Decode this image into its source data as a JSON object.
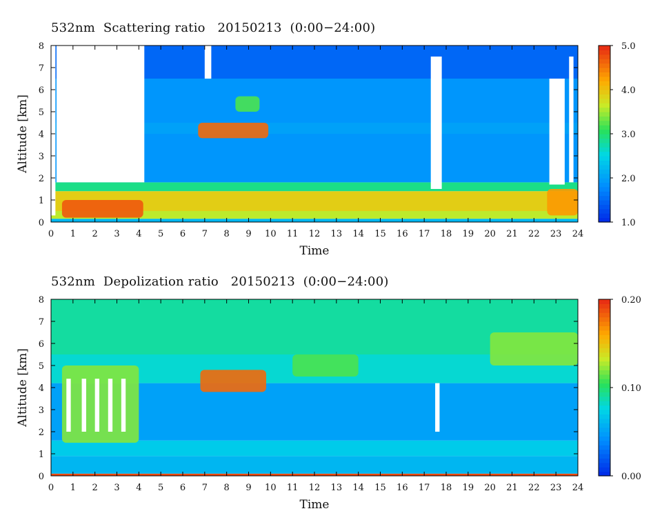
{
  "chart_data": [
    {
      "type": "heatmap",
      "title": "532nm  Scattering ratio   20150213  (0:00−24:00)",
      "xlabel": "Time",
      "ylabel": "Altitude  [km]",
      "xlim": [
        0,
        24
      ],
      "ylim": [
        0,
        8
      ],
      "x_ticks": [
        "0",
        "1",
        "2",
        "3",
        "4",
        "5",
        "6",
        "7",
        "8",
        "9",
        "10",
        "11",
        "12",
        "13",
        "14",
        "15",
        "16",
        "17",
        "18",
        "19",
        "20",
        "21",
        "22",
        "23",
        "24"
      ],
      "y_ticks": [
        "0",
        "1",
        "2",
        "3",
        "4",
        "5",
        "6",
        "7",
        "8"
      ],
      "colorbar": {
        "range": [
          1.0,
          5.0
        ],
        "labels": [
          "1.0",
          "2.0",
          "3.0",
          "4.0",
          "5.0"
        ]
      },
      "bands": [
        {
          "y0": 0.0,
          "y1": 0.15,
          "value": 2.2
        },
        {
          "y0": 0.15,
          "y1": 0.5,
          "value": 3.6
        },
        {
          "y0": 0.5,
          "y1": 1.4,
          "value": 3.9
        },
        {
          "y0": 1.4,
          "y1": 1.8,
          "value": 2.9
        },
        {
          "y0": 1.8,
          "y1": 4.0,
          "value": 1.9
        },
        {
          "y0": 4.0,
          "y1": 4.5,
          "value": 2.0
        },
        {
          "y0": 4.5,
          "y1": 6.5,
          "value": 1.9
        },
        {
          "y0": 6.5,
          "y1": 8.0,
          "value": 1.5
        }
      ],
      "features": [
        {
          "x0": 0.5,
          "x1": 4.2,
          "y0": 0.2,
          "y1": 1.0,
          "value": 4.7
        },
        {
          "x0": 6.7,
          "x1": 9.9,
          "y0": 3.8,
          "y1": 4.5,
          "value": 4.6
        },
        {
          "x0": 8.4,
          "x1": 9.5,
          "y0": 5.0,
          "y1": 5.7,
          "value": 3.2
        },
        {
          "x0": 22.6,
          "x1": 24.0,
          "y0": 0.3,
          "y1": 1.5,
          "value": 4.3
        }
      ],
      "no_data_regions": [
        {
          "x0": 0.25,
          "x1": 4.25,
          "y0": 1.8,
          "y1": 8.0
        },
        {
          "x0": 0.0,
          "x1": 0.2,
          "y0": 0.3,
          "y1": 8.0
        },
        {
          "x0": 7.0,
          "x1": 7.3,
          "y0": 6.5,
          "y1": 8.0
        },
        {
          "x0": 17.3,
          "x1": 17.8,
          "y0": 1.5,
          "y1": 7.5
        },
        {
          "x0": 22.7,
          "x1": 23.4,
          "y0": 1.7,
          "y1": 6.5
        },
        {
          "x0": 23.6,
          "x1": 23.8,
          "y0": 1.8,
          "y1": 7.5
        }
      ]
    },
    {
      "type": "heatmap",
      "title": "532nm  Depolization ratio   20150213  (0:00−24:00)",
      "xlabel": "Time",
      "ylabel": "Altitude  [km]",
      "xlim": [
        0,
        24
      ],
      "ylim": [
        0,
        8
      ],
      "x_ticks": [
        "0",
        "1",
        "2",
        "3",
        "4",
        "5",
        "6",
        "7",
        "8",
        "9",
        "10",
        "11",
        "12",
        "13",
        "14",
        "15",
        "16",
        "17",
        "18",
        "19",
        "20",
        "21",
        "22",
        "23",
        "24"
      ],
      "y_ticks": [
        "0",
        "1",
        "2",
        "3",
        "4",
        "5",
        "6",
        "7",
        "8"
      ],
      "colorbar": {
        "range": [
          0.0,
          0.2
        ],
        "labels": [
          "0.00",
          "0.10",
          "0.20"
        ]
      },
      "bands": [
        {
          "y0": 0.0,
          "y1": 0.1,
          "value": 0.19
        },
        {
          "y0": 0.1,
          "y1": 0.9,
          "value": 0.06
        },
        {
          "y0": 0.9,
          "y1": 1.6,
          "value": 0.07
        },
        {
          "y0": 1.6,
          "y1": 4.2,
          "value": 0.05
        },
        {
          "y0": 4.2,
          "y1": 5.5,
          "value": 0.08
        },
        {
          "y0": 5.5,
          "y1": 8.0,
          "value": 0.09
        }
      ],
      "features": [
        {
          "x0": 0.5,
          "x1": 4.0,
          "y0": 1.5,
          "y1": 5.0,
          "value": 0.12
        },
        {
          "x0": 6.8,
          "x1": 9.8,
          "y0": 3.8,
          "y1": 4.8,
          "value": 0.18
        },
        {
          "x0": 11.0,
          "x1": 14.0,
          "y0": 4.5,
          "y1": 5.5,
          "value": 0.11
        },
        {
          "x0": 20.0,
          "x1": 24.0,
          "y0": 5.0,
          "y1": 6.5,
          "value": 0.12
        }
      ],
      "no_data_regions": [
        {
          "x0": 0.7,
          "x1": 0.9,
          "y0": 2.0,
          "y1": 4.4
        },
        {
          "x0": 1.4,
          "x1": 1.6,
          "y0": 2.0,
          "y1": 4.4
        },
        {
          "x0": 2.0,
          "x1": 2.2,
          "y0": 2.0,
          "y1": 4.4
        },
        {
          "x0": 2.6,
          "x1": 2.8,
          "y0": 2.0,
          "y1": 4.4
        },
        {
          "x0": 3.2,
          "x1": 3.4,
          "y0": 2.0,
          "y1": 4.4
        },
        {
          "x0": 17.5,
          "x1": 17.7,
          "y0": 2.0,
          "y1": 4.2
        }
      ]
    }
  ]
}
